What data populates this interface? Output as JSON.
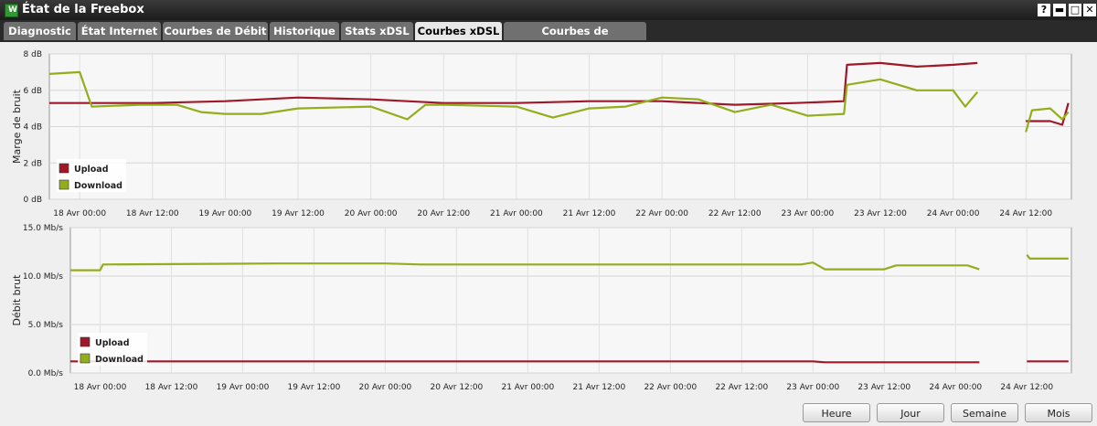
{
  "window": {
    "title": "État de la Freebox",
    "icon": "freebox-app-icon",
    "controls": [
      {
        "name": "help-button",
        "glyph": "?"
      },
      {
        "name": "minimize-button",
        "glyph": "▬"
      },
      {
        "name": "maximize-button",
        "glyph": "□"
      },
      {
        "name": "close-button",
        "glyph": "✕"
      }
    ]
  },
  "tabs": [
    {
      "label": "Diagnostic",
      "active": false
    },
    {
      "label": "État Internet",
      "active": false
    },
    {
      "label": "Courbes de Débit",
      "active": false
    },
    {
      "label": "Historique",
      "active": false
    },
    {
      "label": "Stats xDSL",
      "active": false
    },
    {
      "label": "Courbes xDSL",
      "active": true
    },
    {
      "label": "Courbes de température",
      "active": false
    }
  ],
  "range_buttons": [
    {
      "label": "Heure"
    },
    {
      "label": "Jour"
    },
    {
      "label": "Semaine"
    },
    {
      "label": "Mois"
    }
  ],
  "colors": {
    "upload": "#a01828",
    "download": "#93ae1c",
    "titlebar": "#2a2a2a",
    "tab_inactive": "#707070",
    "tab_active": "#e8e8e8"
  },
  "chart_data": [
    {
      "type": "line",
      "ylabel": "Marge de bruit",
      "ylim": [
        0,
        8
      ],
      "yticks": [
        "0 dB",
        "2 dB",
        "4 dB",
        "6 dB",
        "8 dB"
      ],
      "xlim": [
        "2014-04-17T19:00",
        "2014-04-24T19:30"
      ],
      "xticks": [
        "18 Avr 00:00",
        "18 Avr 12:00",
        "19 Avr 00:00",
        "19 Avr 12:00",
        "20 Avr 00:00",
        "20 Avr 12:00",
        "21 Avr 00:00",
        "21 Avr 12:00",
        "22 Avr 00:00",
        "22 Avr 12:00",
        "23 Avr 00:00",
        "23 Avr 12:00",
        "24 Avr 00:00",
        "24 Avr 12:00"
      ],
      "legend": [
        "Upload",
        "Download"
      ],
      "legend_position": "bottom-left",
      "series": [
        {
          "name": "Upload",
          "segments": [
            [
              [
                "2014-04-17T19:00",
                5.3
              ],
              [
                "2014-04-18T12:00",
                5.3
              ],
              [
                "2014-04-19T00:00",
                5.4
              ],
              [
                "2014-04-19T12:00",
                5.6
              ],
              [
                "2014-04-20T00:00",
                5.5
              ],
              [
                "2014-04-20T12:00",
                5.3
              ],
              [
                "2014-04-21T00:00",
                5.3
              ],
              [
                "2014-04-21T12:00",
                5.4
              ],
              [
                "2014-04-22T00:00",
                5.4
              ],
              [
                "2014-04-22T12:00",
                5.2
              ],
              [
                "2014-04-22T22:00",
                5.3
              ],
              [
                "2014-04-23T06:00",
                5.4
              ],
              [
                "2014-04-23T06:30",
                7.4
              ],
              [
                "2014-04-23T12:00",
                7.5
              ],
              [
                "2014-04-23T18:00",
                7.3
              ],
              [
                "2014-04-24T00:00",
                7.4
              ],
              [
                "2014-04-24T04:00",
                7.5
              ]
            ],
            [
              [
                "2014-04-24T12:00",
                4.3
              ],
              [
                "2014-04-24T16:00",
                4.3
              ],
              [
                "2014-04-24T18:00",
                4.1
              ],
              [
                "2014-04-24T19:00",
                5.3
              ]
            ]
          ]
        },
        {
          "name": "Download",
          "segments": [
            [
              [
                "2014-04-17T19:00",
                6.9
              ],
              [
                "2014-04-18T00:00",
                7.0
              ],
              [
                "2014-04-18T02:00",
                5.1
              ],
              [
                "2014-04-18T10:00",
                5.2
              ],
              [
                "2014-04-18T16:00",
                5.2
              ],
              [
                "2014-04-18T20:00",
                4.8
              ],
              [
                "2014-04-19T00:00",
                4.7
              ],
              [
                "2014-04-19T06:00",
                4.7
              ],
              [
                "2014-04-19T12:00",
                5.0
              ],
              [
                "2014-04-20T00:00",
                5.1
              ],
              [
                "2014-04-20T06:00",
                4.4
              ],
              [
                "2014-04-20T09:00",
                5.2
              ],
              [
                "2014-04-20T12:00",
                5.2
              ],
              [
                "2014-04-21T00:00",
                5.1
              ],
              [
                "2014-04-21T06:00",
                4.5
              ],
              [
                "2014-04-21T12:00",
                5.0
              ],
              [
                "2014-04-21T18:00",
                5.1
              ],
              [
                "2014-04-22T00:00",
                5.6
              ],
              [
                "2014-04-22T06:00",
                5.5
              ],
              [
                "2014-04-22T12:00",
                4.8
              ],
              [
                "2014-04-22T18:00",
                5.2
              ],
              [
                "2014-04-23T00:00",
                4.6
              ],
              [
                "2014-04-23T06:00",
                4.7
              ],
              [
                "2014-04-23T06:30",
                6.3
              ],
              [
                "2014-04-23T12:00",
                6.6
              ],
              [
                "2014-04-23T18:00",
                6.0
              ],
              [
                "2014-04-24T00:00",
                6.0
              ],
              [
                "2014-04-24T02:00",
                5.1
              ],
              [
                "2014-04-24T04:00",
                5.9
              ]
            ],
            [
              [
                "2014-04-24T12:00",
                3.7
              ],
              [
                "2014-04-24T13:00",
                4.9
              ],
              [
                "2014-04-24T16:00",
                5.0
              ],
              [
                "2014-04-24T18:00",
                4.4
              ],
              [
                "2014-04-24T19:00",
                4.8
              ]
            ]
          ]
        }
      ]
    },
    {
      "type": "line",
      "ylabel": "Débit brut",
      "ylim": [
        0,
        15
      ],
      "yticks": [
        "0.0 Mb/s",
        "5.0 Mb/s",
        "10.0 Mb/s",
        "15.0 Mb/s"
      ],
      "xlim": [
        "2014-04-17T19:00",
        "2014-04-24T19:30"
      ],
      "xticks": [
        "18 Avr 00:00",
        "18 Avr 12:00",
        "19 Avr 00:00",
        "19 Avr 12:00",
        "20 Avr 00:00",
        "20 Avr 12:00",
        "21 Avr 00:00",
        "21 Avr 12:00",
        "22 Avr 00:00",
        "22 Avr 12:00",
        "23 Avr 00:00",
        "23 Avr 12:00",
        "24 Avr 00:00",
        "24 Avr 12:00"
      ],
      "legend": [
        "Upload",
        "Download"
      ],
      "legend_position": "bottom-left",
      "series": [
        {
          "name": "Upload",
          "segments": [
            [
              [
                "2014-04-17T19:00",
                1.2
              ],
              [
                "2014-04-23T00:00",
                1.2
              ],
              [
                "2014-04-23T02:00",
                1.1
              ],
              [
                "2014-04-24T04:00",
                1.1
              ]
            ],
            [
              [
                "2014-04-24T12:00",
                1.2
              ],
              [
                "2014-04-24T19:00",
                1.2
              ]
            ]
          ]
        },
        {
          "name": "Download",
          "segments": [
            [
              [
                "2014-04-17T19:00",
                10.6
              ],
              [
                "2014-04-18T00:00",
                10.6
              ],
              [
                "2014-04-18T00:30",
                11.2
              ],
              [
                "2014-04-19T06:00",
                11.3
              ],
              [
                "2014-04-20T00:00",
                11.3
              ],
              [
                "2014-04-20T06:00",
                11.2
              ],
              [
                "2014-04-22T22:00",
                11.2
              ],
              [
                "2014-04-23T00:00",
                11.4
              ],
              [
                "2014-04-23T02:00",
                10.7
              ],
              [
                "2014-04-23T12:00",
                10.7
              ],
              [
                "2014-04-23T14:00",
                11.1
              ],
              [
                "2014-04-24T02:00",
                11.1
              ],
              [
                "2014-04-24T04:00",
                10.7
              ]
            ],
            [
              [
                "2014-04-24T12:00",
                12.2
              ],
              [
                "2014-04-24T12:30",
                11.8
              ],
              [
                "2014-04-24T19:00",
                11.8
              ]
            ]
          ]
        }
      ]
    }
  ]
}
